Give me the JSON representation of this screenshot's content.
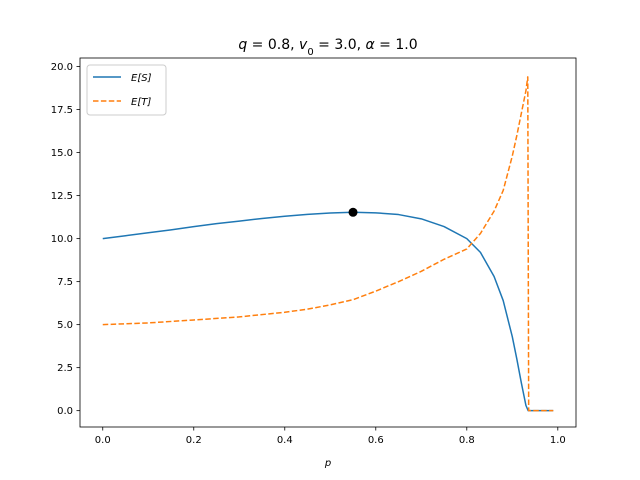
{
  "chart_data": {
    "type": "line",
    "title": "q = 0.8, v₀ = 3.0, α = 1.0",
    "title_parts": {
      "q": "q = 0.8, ",
      "v": "v",
      "sub": "0",
      "rest": " = 3.0, α = 1.0"
    },
    "xlabel": "p",
    "ylabel": "",
    "xlim": [
      -0.05,
      1.04
    ],
    "ylim": [
      -0.95,
      20.5
    ],
    "xticks": [
      "0.0",
      "0.2",
      "0.4",
      "0.6",
      "0.8",
      "1.0"
    ],
    "xtick_values": [
      0.0,
      0.2,
      0.4,
      0.6,
      0.8,
      1.0
    ],
    "yticks": [
      "0.0",
      "2.5",
      "5.0",
      "7.5",
      "10.0",
      "12.5",
      "15.0",
      "17.5",
      "20.0"
    ],
    "ytick_values": [
      0.0,
      2.5,
      5.0,
      7.5,
      10.0,
      12.5,
      15.0,
      17.5,
      20.0
    ],
    "grid": false,
    "legend_position": "top-left",
    "series": [
      {
        "name": "E[S]",
        "color": "#1f77b4",
        "style": "solid",
        "x": [
          0.0,
          0.05,
          0.1,
          0.15,
          0.2,
          0.25,
          0.3,
          0.35,
          0.4,
          0.45,
          0.5,
          0.55,
          0.6,
          0.65,
          0.7,
          0.75,
          0.8,
          0.83,
          0.86,
          0.88,
          0.9,
          0.91,
          0.92,
          0.93,
          0.935,
          0.95,
          0.97,
          0.99
        ],
        "y": [
          10.0,
          10.17,
          10.34,
          10.51,
          10.7,
          10.87,
          11.02,
          11.17,
          11.3,
          11.41,
          11.49,
          11.53,
          11.5,
          11.4,
          11.15,
          10.7,
          10.0,
          9.2,
          7.8,
          6.4,
          4.3,
          3.0,
          1.6,
          0.3,
          0.0,
          0.0,
          0.0,
          0.0
        ]
      },
      {
        "name": "E[T]",
        "color": "#ff7f0e",
        "style": "dashed",
        "x": [
          0.0,
          0.1,
          0.2,
          0.3,
          0.4,
          0.45,
          0.5,
          0.55,
          0.6,
          0.65,
          0.7,
          0.75,
          0.8,
          0.83,
          0.86,
          0.88,
          0.9,
          0.91,
          0.92,
          0.93,
          0.934,
          0.936,
          0.95,
          0.97,
          0.99
        ],
        "y": [
          5.0,
          5.1,
          5.27,
          5.45,
          5.72,
          5.9,
          6.15,
          6.45,
          6.95,
          7.5,
          8.1,
          8.8,
          9.4,
          10.3,
          11.6,
          12.8,
          14.8,
          16.0,
          17.3,
          18.6,
          19.4,
          0.0,
          0.0,
          0.0,
          0.0
        ]
      }
    ],
    "marker": {
      "x": 0.55,
      "y": 11.53,
      "color": "#000000"
    }
  }
}
